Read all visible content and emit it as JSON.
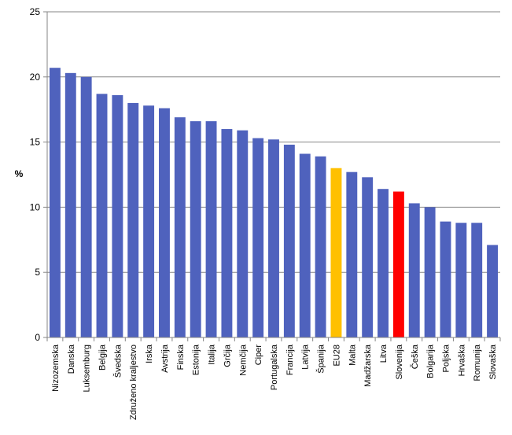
{
  "chart_data": {
    "type": "bar",
    "title": "",
    "xlabel": "",
    "ylabel": "%",
    "ylim": [
      0,
      25
    ],
    "yticks": [
      0,
      5,
      10,
      15,
      20,
      25
    ],
    "grid": true,
    "legend": "none",
    "categories": [
      "Nizozemska",
      "Danska",
      "Luksemburg",
      "Belgija",
      "Švedska",
      "Združeno kraljestvo",
      "Irska",
      "Avstrija",
      "Finska",
      "Estonija",
      "Italija",
      "Grčija",
      "Nemčija",
      "Ciper",
      "Portugalska",
      "Francija",
      "Latvija",
      "Španija",
      "EU28",
      "Malta",
      "Madžarska",
      "Litva",
      "Slovenija",
      "Češka",
      "Bolgarija",
      "Poljska",
      "Hrvaška",
      "Romunija",
      "Slovaška"
    ],
    "values": [
      20.7,
      20.3,
      20.0,
      18.7,
      18.6,
      18.0,
      17.8,
      17.6,
      16.9,
      16.6,
      16.6,
      16.0,
      15.9,
      15.3,
      15.2,
      14.8,
      14.1,
      13.9,
      13.0,
      12.7,
      12.3,
      11.4,
      11.2,
      10.3,
      10.0,
      8.9,
      8.8,
      8.8,
      7.1
    ],
    "colors": {
      "default": "#4F62BD",
      "highlight": {
        "EU28": "#FFC000",
        "Slovenija": "#FF0000"
      },
      "grid": "#868686",
      "axis": "#868686"
    }
  }
}
